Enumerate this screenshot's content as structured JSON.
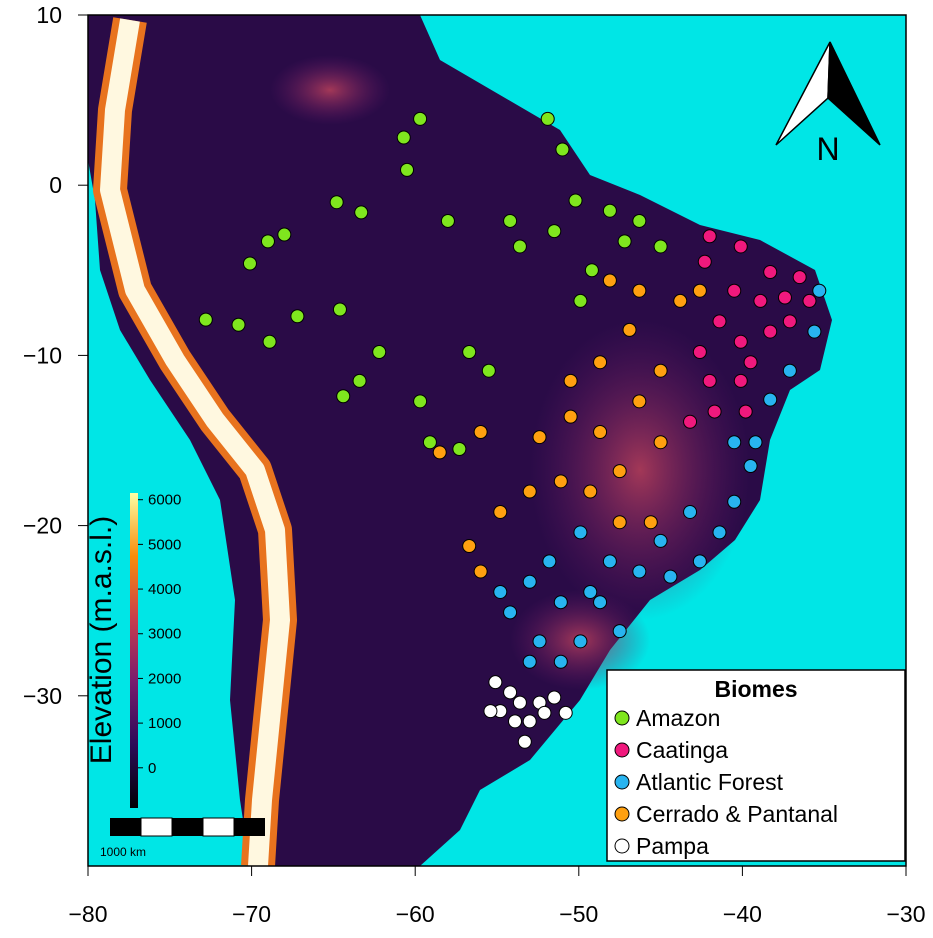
{
  "chart_data": {
    "type": "scatter",
    "xlim": [
      -80,
      -30
    ],
    "ylim": [
      -40,
      10
    ],
    "xticks": [
      {
        "value": -80,
        "label": "−80"
      },
      {
        "value": -70,
        "label": "−70"
      },
      {
        "value": -60,
        "label": "−60"
      },
      {
        "value": -50,
        "label": "−50"
      },
      {
        "value": -40,
        "label": "−40"
      },
      {
        "value": -30,
        "label": "−30"
      }
    ],
    "yticks": [
      10,
      0,
      {
        "value": -10,
        "label": "−10"
      },
      {
        "value": -20,
        "label": "−20"
      },
      {
        "value": -30,
        "label": "−30"
      }
    ],
    "legend": {
      "title": "Biomes",
      "position": "bottom-right"
    },
    "north_arrow": "N",
    "scale_bar": "1000 km",
    "colorbar": {
      "title": "Elevation (m.a.s.l.)",
      "lim": [
        -900,
        6150
      ],
      "ticks": [
        0,
        1000,
        2000,
        3000,
        4000,
        5000,
        6000
      ]
    },
    "series": [
      {
        "name": "Amazon",
        "color": "#7fe61e",
        "x": [
          -59.7,
          -60.7,
          -60.5,
          -51.9,
          -51.0,
          -64.8,
          -63.3,
          -68.0,
          -70.1,
          -69.0,
          -72.8,
          -70.8,
          -67.2,
          -64.6,
          -62.2,
          -63.4,
          -64.4,
          -59.7,
          -59.1,
          -57.3,
          -55.5,
          -56.7,
          -51.5,
          -50.2,
          -48.1,
          -46.3,
          -49.2,
          -49.9,
          -45.0,
          -47.2,
          -53.6,
          -58.0,
          -54.2,
          -68.9
        ],
        "y": [
          3.9,
          2.8,
          0.9,
          3.9,
          2.1,
          -1.0,
          -1.6,
          -2.9,
          -4.6,
          -3.3,
          -7.9,
          -8.2,
          -7.7,
          -7.3,
          -9.8,
          -11.5,
          -12.4,
          -12.7,
          -15.1,
          -15.5,
          -10.9,
          -9.8,
          -2.7,
          -0.9,
          -1.5,
          -2.1,
          -5.0,
          -6.8,
          -3.6,
          -3.3,
          -3.6,
          -2.1,
          -2.1,
          -9.2
        ]
      },
      {
        "name": "Caatinga",
        "color": "#f0197d",
        "x": [
          -42.0,
          -40.1,
          -38.3,
          -36.5,
          -35.9,
          -37.1,
          -38.9,
          -40.5,
          -41.4,
          -42.6,
          -40.1,
          -38.3,
          -42.0,
          -40.1,
          -43.2,
          -41.7,
          -39.5,
          -42.3,
          -37.4,
          -39.8
        ],
        "y": [
          -3.0,
          -3.6,
          -5.1,
          -5.4,
          -6.8,
          -8.0,
          -6.8,
          -6.2,
          -8.0,
          -9.8,
          -9.2,
          -8.6,
          -11.5,
          -11.5,
          -13.9,
          -13.3,
          -10.4,
          -4.5,
          -6.6,
          -13.3
        ]
      },
      {
        "name": "Atlantic Forest",
        "color": "#28b4f0",
        "x": [
          -35.3,
          -35.6,
          -37.1,
          -38.3,
          -39.2,
          -39.5,
          -40.5,
          -41.4,
          -42.6,
          -44.4,
          -46.3,
          -48.1,
          -49.3,
          -51.1,
          -53.0,
          -54.8,
          -54.2,
          -52.4,
          -51.1,
          -53.0,
          -49.9,
          -48.7,
          -47.5,
          -43.2,
          -45.0,
          -40.5,
          -51.8,
          -49.9
        ],
        "y": [
          -6.2,
          -8.6,
          -10.9,
          -12.6,
          -15.1,
          -16.5,
          -18.6,
          -20.4,
          -22.1,
          -23.0,
          -22.7,
          -22.1,
          -23.9,
          -24.5,
          -23.3,
          -23.9,
          -25.1,
          -26.8,
          -28.0,
          -28.0,
          -26.8,
          -24.5,
          -26.2,
          -19.2,
          -20.9,
          -15.1,
          -22.1,
          -20.4
        ]
      },
      {
        "name": "Cerrado & Pantanal",
        "color": "#ffa010",
        "x": [
          -48.1,
          -46.9,
          -48.7,
          -50.5,
          -52.4,
          -50.5,
          -48.7,
          -46.3,
          -45.0,
          -47.5,
          -49.3,
          -51.1,
          -53.0,
          -54.8,
          -56.7,
          -56.0,
          -58.5,
          -56.0,
          -47.5,
          -45.6,
          -45.0,
          -43.8,
          -42.6,
          -46.3
        ],
        "y": [
          -5.6,
          -8.5,
          -10.4,
          -11.5,
          -14.8,
          -13.6,
          -14.5,
          -12.7,
          -15.1,
          -16.8,
          -18.0,
          -17.4,
          -18.0,
          -19.2,
          -21.2,
          -22.7,
          -15.7,
          -14.5,
          -19.8,
          -19.8,
          -10.9,
          -6.8,
          -6.2,
          -6.2
        ]
      },
      {
        "name": "Pampa",
        "color": "#ffffff",
        "x": [
          -55.1,
          -54.2,
          -54.8,
          -53.6,
          -53.0,
          -52.4,
          -51.5,
          -50.8,
          -53.9,
          -53.3,
          -55.4,
          -52.1
        ],
        "y": [
          -29.2,
          -29.8,
          -30.9,
          -30.4,
          -31.5,
          -30.4,
          -30.1,
          -31.0,
          -31.5,
          -32.7,
          -30.9,
          -31.0
        ]
      }
    ]
  }
}
